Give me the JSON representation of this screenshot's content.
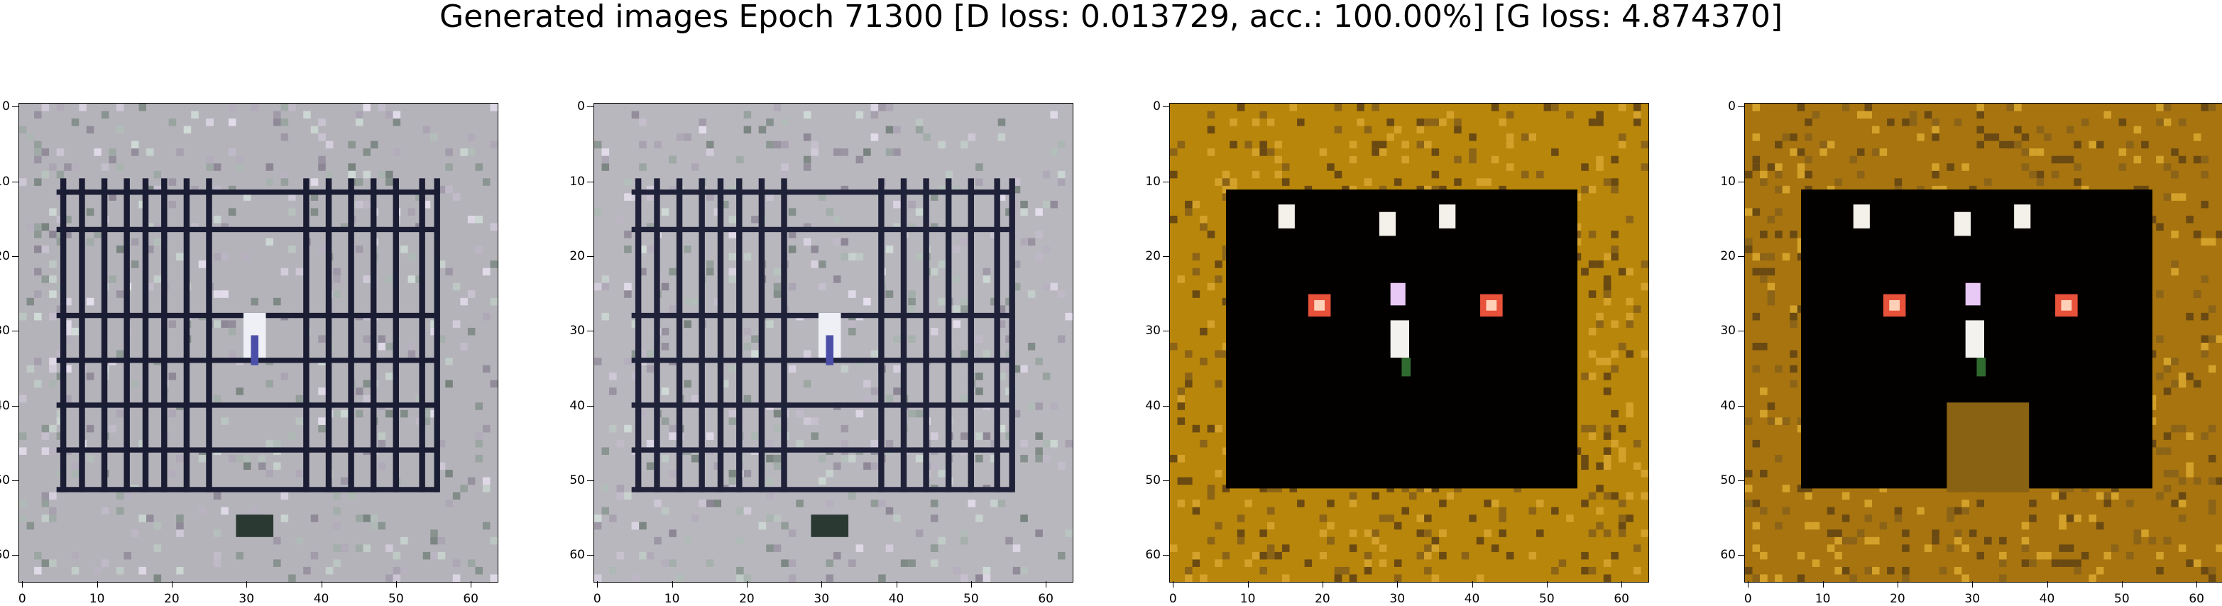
{
  "figure": {
    "title": "Generated images Epoch 71300 [D loss: 0.013729, acc.: 100.00%] [G loss: 4.874370]"
  },
  "axes": {
    "x_ticks": [
      "0",
      "10",
      "20",
      "30",
      "40",
      "50",
      "60"
    ],
    "y_ticks": [
      "0",
      "10",
      "20",
      "30",
      "40",
      "50",
      "60"
    ]
  },
  "panels": [
    {
      "name": "generated-image-1",
      "style": "grid",
      "grid_color": "#1a1d33",
      "bg_color": "#b5b3ba"
    },
    {
      "name": "generated-image-2",
      "style": "grid",
      "grid_color": "#20223a",
      "bg_color": "#b9b7be"
    },
    {
      "name": "generated-image-3",
      "style": "dark",
      "frame_color": "#b8860b",
      "bg_color": "#030100"
    },
    {
      "name": "generated-image-4",
      "style": "dark",
      "frame_color": "#a8740f",
      "bg_color": "#030100"
    }
  ]
}
